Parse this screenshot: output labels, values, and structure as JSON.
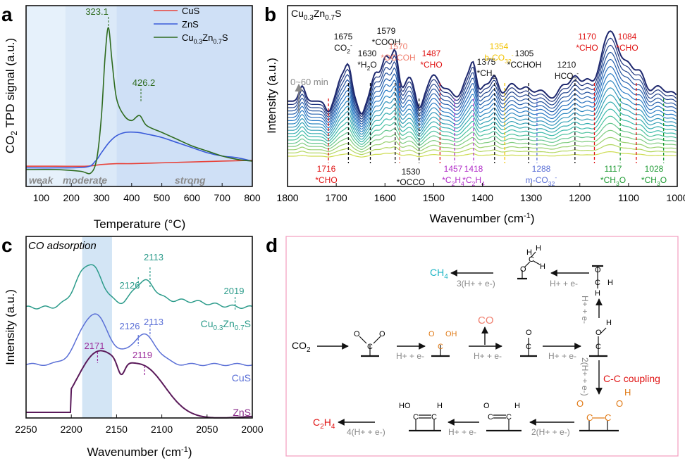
{
  "colors": {
    "cus": "#e8433a",
    "zns": "#3a5bd9",
    "cuzn": "#2e6b1e",
    "region_weak": "#e6f1fb",
    "region_moderate": "#dbe9f8",
    "region_strong": "#cfe0f6",
    "black": "#111111",
    "red": "#e01414",
    "salmon": "#f08070",
    "yellow": "#f2c200",
    "purple": "#b12cc8",
    "blue": "#5a6fd6",
    "green": "#1e9a33",
    "teal": "#2b9b8a",
    "cyan": "#1cb5c5",
    "orange": "#e07a16",
    "gray": "#8a8a8a",
    "box": "#f4a3c4",
    "band": "#c8def2"
  },
  "panels": {
    "a": {
      "letter": "a",
      "region_labels": [
        "weak",
        "moderate",
        "strong"
      ],
      "peak_labels": [
        "323.1",
        "426.2"
      ]
    },
    "b": {
      "letter": "b",
      "sample": "Cu",
      "sample_sub1": "0.3",
      "sample_mid": "Zn",
      "sample_sub2": "0.7",
      "sample_end": "S",
      "time_label": "0~60 min",
      "annotations": [
        {
          "wn": 1716,
          "l1": "1716",
          "l2": "*CHO",
          "color": "red",
          "pos": "low"
        },
        {
          "wn": 1675,
          "l1": "1675",
          "l2": "CO2-",
          "color": "black",
          "pos": "high"
        },
        {
          "wn": 1630,
          "l1": "1630",
          "l2": "*H2O",
          "color": "black",
          "pos": "high"
        },
        {
          "wn": 1579,
          "l1": "1579",
          "l2": "*COOH",
          "color": "black",
          "pos": "high"
        },
        {
          "wn": 1570,
          "l1": "1570",
          "l2": "*OCCOH",
          "color": "salmon",
          "pos": "high"
        },
        {
          "wn": 1530,
          "l1": "1530",
          "l2": "*OCCO",
          "color": "black",
          "pos": "low"
        },
        {
          "wn": 1487,
          "l1": "1487",
          "l2": "*CHO",
          "color": "red",
          "pos": "high"
        },
        {
          "wn": 1457,
          "l1": "1457",
          "l2": "*C2H4",
          "color": "purple",
          "pos": "low"
        },
        {
          "wn": 1418,
          "l1": "1418",
          "l2": "*C2H4",
          "color": "purple",
          "pos": "low"
        },
        {
          "wn": 1375,
          "l1": "1375",
          "l2": "*CH2",
          "color": "black",
          "pos": "high"
        },
        {
          "wn": 1354,
          "l1": "1354",
          "l2": "b-CO32-",
          "color": "yellow",
          "pos": "high"
        },
        {
          "wn": 1305,
          "l1": "1305",
          "l2": "*CCHOH",
          "color": "black",
          "pos": "high"
        },
        {
          "wn": 1288,
          "l1": "1288",
          "l2": "m-CO32-",
          "color": "blue",
          "pos": "low"
        },
        {
          "wn": 1210,
          "l1": "1210",
          "l2": "HCO3-",
          "color": "black",
          "pos": "high"
        },
        {
          "wn": 1170,
          "l1": "1170",
          "l2": "*CHO",
          "color": "red",
          "pos": "high"
        },
        {
          "wn": 1117,
          "l1": "1117",
          "l2": "*CH3O",
          "color": "green",
          "pos": "low"
        },
        {
          "wn": 1084,
          "l1": "1084",
          "l2": "*CHO",
          "color": "red",
          "pos": "high"
        },
        {
          "wn": 1028,
          "l1": "1028",
          "l2": "*CH3O",
          "color": "green",
          "pos": "low"
        }
      ]
    },
    "c": {
      "letter": "c",
      "inset_title": "CO adsorption",
      "series_labels": [
        "Cu0.3Zn0.7S",
        "CuS",
        "ZnS"
      ],
      "peak_labels": [
        "2126",
        "2113",
        "2019",
        "2126",
        "2113",
        "2171",
        "2119"
      ]
    },
    "d": {
      "letter": "d",
      "co2": "CO2",
      "ch4": "CH4",
      "c2h4": "C2H4",
      "co": "CO",
      "step": "H+ + e-",
      "step3": "3(H+ + e-)",
      "step4": "4(H+ + e-)",
      "step2": "2(H+ + e-)",
      "coupling": "C-C coupling"
    }
  },
  "chart_data": [
    {
      "type": "line",
      "panel": "a",
      "xlabel": "Temperature (°C)",
      "ylabel": "CO2 TPD signal (a.u.)",
      "xlim": [
        50,
        800
      ],
      "xticks": [
        100,
        200,
        300,
        400,
        500,
        600,
        700,
        800
      ],
      "regions": [
        {
          "name": "weak",
          "from": 50,
          "to": 180
        },
        {
          "name": "moderate",
          "from": 180,
          "to": 350
        },
        {
          "name": "strong",
          "from": 350,
          "to": 800
        }
      ],
      "peaks": [
        323.1,
        426.2
      ],
      "series": [
        {
          "name": "CuS",
          "color": "#e8433a",
          "points": [
            [
              50,
              0.0
            ],
            [
              150,
              0.0
            ],
            [
              250,
              0.0
            ],
            [
              300,
              0.01
            ],
            [
              350,
              0.015
            ],
            [
              400,
              0.015
            ],
            [
              500,
              0.02
            ],
            [
              600,
              0.025
            ],
            [
              700,
              0.03
            ],
            [
              800,
              0.035
            ]
          ]
        },
        {
          "name": "ZnS",
          "color": "#3a5bd9",
          "points": [
            [
              50,
              -0.01
            ],
            [
              150,
              -0.01
            ],
            [
              250,
              -0.005
            ],
            [
              280,
              0.03
            ],
            [
              300,
              0.08
            ],
            [
              325,
              0.14
            ],
            [
              350,
              0.18
            ],
            [
              380,
              0.2
            ],
            [
              420,
              0.2
            ],
            [
              450,
              0.19
            ],
            [
              500,
              0.17
            ],
            [
              550,
              0.14
            ],
            [
              600,
              0.11
            ],
            [
              650,
              0.08
            ],
            [
              700,
              0.06
            ],
            [
              750,
              0.05
            ],
            [
              800,
              0.03
            ]
          ]
        },
        {
          "name": "Cu0.3Zn0.7S",
          "color": "#2e6b1e",
          "points": [
            [
              50,
              -0.02
            ],
            [
              150,
              -0.02
            ],
            [
              230,
              -0.03
            ],
            [
              265,
              -0.04
            ],
            [
              285,
              0.05
            ],
            [
              300,
              0.3
            ],
            [
              312,
              0.65
            ],
            [
              323.1,
              0.82
            ],
            [
              335,
              0.62
            ],
            [
              350,
              0.4
            ],
            [
              375,
              0.3
            ],
            [
              400,
              0.27
            ],
            [
              426.2,
              0.3
            ],
            [
              450,
              0.24
            ],
            [
              500,
              0.2
            ],
            [
              550,
              0.16
            ],
            [
              600,
              0.12
            ],
            [
              650,
              0.09
            ],
            [
              700,
              0.06
            ],
            [
              750,
              0.04
            ],
            [
              800,
              0.03
            ]
          ]
        }
      ]
    },
    {
      "type": "line",
      "panel": "b",
      "xlabel": "Wavenumber (cm-1)",
      "ylabel": "Intensity (a.u.)",
      "xlim": [
        1800,
        1000
      ],
      "xticks": [
        1800,
        1700,
        1600,
        1500,
        1400,
        1300,
        1200,
        1100,
        1000
      ],
      "n_spectra": 18,
      "time_range": "0~60 min",
      "peak_positions": [
        1716,
        1675,
        1630,
        1579,
        1570,
        1530,
        1487,
        1457,
        1418,
        1375,
        1354,
        1305,
        1288,
        1210,
        1170,
        1117,
        1084,
        1028
      ]
    },
    {
      "type": "line",
      "panel": "c",
      "xlabel": "Wavenumber (cm-1)",
      "ylabel": "Intensity (a.u.)",
      "xlim": [
        2250,
        2000
      ],
      "xticks": [
        2250,
        2200,
        2150,
        2100,
        2050,
        2000
      ],
      "highlight_band": [
        2188,
        2155
      ],
      "series": [
        {
          "name": "Cu0.3Zn0.7S",
          "color": "#2b9b8a",
          "peaks": [
            2126,
            2113,
            2019
          ]
        },
        {
          "name": "CuS",
          "color": "#5a6fd6",
          "peaks": [
            2126,
            2113
          ]
        },
        {
          "name": "ZnS",
          "color": "#6a1a6a",
          "peaks": [
            2171,
            2119
          ]
        }
      ]
    }
  ]
}
